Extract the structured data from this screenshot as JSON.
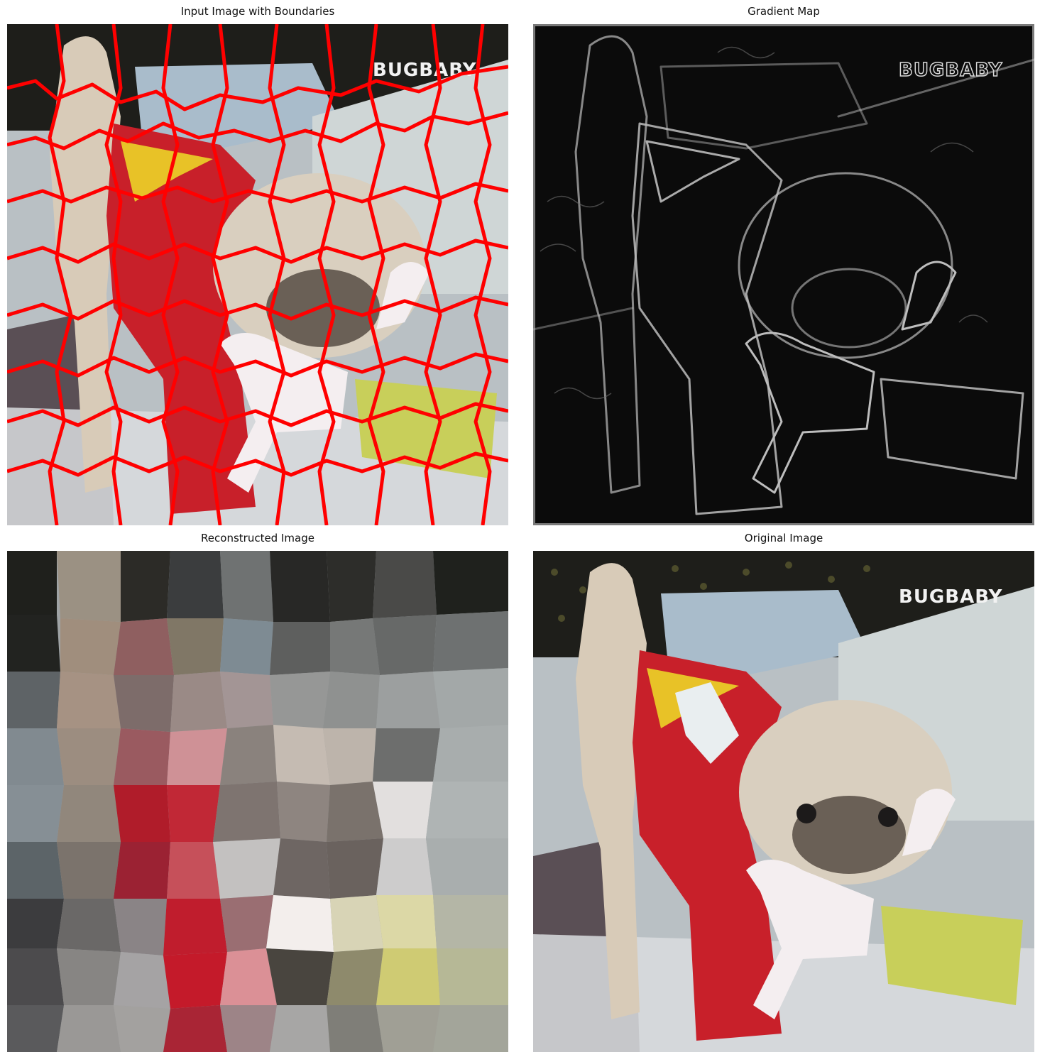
{
  "panels": {
    "input": {
      "title": "Input Image with Boundaries",
      "watermark": "BUGBABY"
    },
    "gradient": {
      "title": "Gradient Map",
      "watermark": "BUGBABY"
    },
    "reconstructed": {
      "title": "Reconstructed Image"
    },
    "original": {
      "title": "Original Image",
      "watermark": "BUGBABY"
    }
  },
  "colors": {
    "boundary": "#ff0000",
    "sweater": "#c8202a",
    "pug_fur": "#d8cbb8",
    "bedding": "#c9cfd2",
    "plush": "#f4eef0",
    "plush_body": "#c8cf5a",
    "gradient_bg": "#0b0b0b",
    "gradient_edge": "#bdbdbd"
  }
}
